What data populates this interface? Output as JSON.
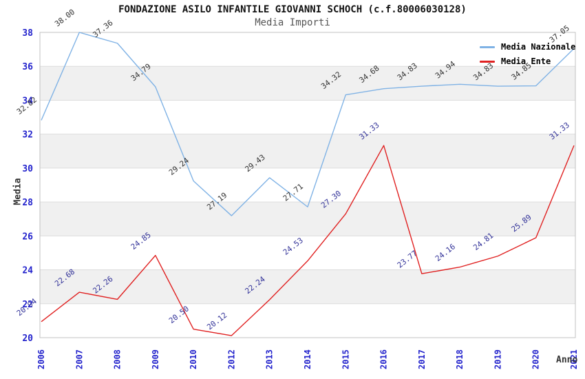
{
  "chart_data": {
    "type": "line",
    "title": "FONDAZIONE ASILO INFANTILE GIOVANNI SCHOCH (c.f.80006030128)",
    "subtitle": "Media Importi",
    "xlabel": "Anno",
    "ylabel": "Media",
    "x": [
      "2006",
      "2007",
      "2008",
      "2009",
      "2010",
      "2012",
      "2013",
      "2014",
      "2015",
      "2016",
      "2017",
      "2018",
      "2019",
      "2020",
      "2021"
    ],
    "series": [
      {
        "name": "Media Nazionale",
        "color": "#7FB2E5",
        "label_color": "#333333",
        "values": [
          32.82,
          38.0,
          37.36,
          34.79,
          29.24,
          27.19,
          29.43,
          27.71,
          34.32,
          34.68,
          34.83,
          34.94,
          34.83,
          34.85,
          37.05
        ]
      },
      {
        "name": "Media Ente",
        "color": "#E02020",
        "label_color": "#333399",
        "values": [
          20.94,
          22.68,
          22.26,
          24.85,
          20.5,
          20.12,
          22.24,
          24.53,
          27.3,
          31.33,
          23.77,
          24.16,
          24.81,
          25.89,
          31.33
        ]
      }
    ],
    "ylim": [
      20,
      38
    ],
    "y_ticks": [
      20,
      22,
      24,
      26,
      28,
      30,
      32,
      34,
      36,
      38
    ],
    "shaded_bands": [
      [
        22,
        24
      ],
      [
        26,
        28
      ],
      [
        30,
        32
      ],
      [
        34,
        36
      ]
    ],
    "grid": "horizontal",
    "legend_position": "top-right",
    "value_label_format": "2-decimals",
    "style": {
      "tick_color": "#2323CC",
      "band_fill": "#F0F0F0",
      "grid_color": "#DCDCDC",
      "frame_color": "#C0C0C0",
      "background": "#FFFFFF"
    }
  }
}
